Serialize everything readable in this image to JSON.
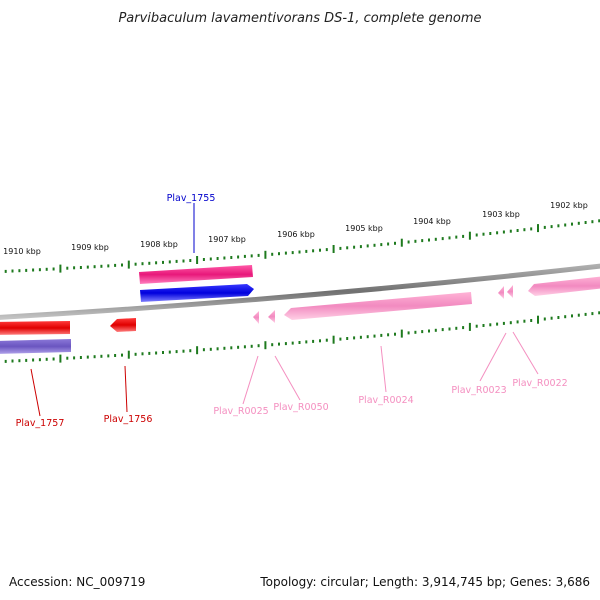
{
  "title": "Parvibaculum lavamentivorans DS-1, complete genome",
  "footer": {
    "accession": "Accession: NC_009719",
    "topology": "Topology: circular; Length: 3,914,745 bp; Genes: 3,686"
  },
  "backbone_color": "#8a8a8a",
  "tick_color": "#1e7a1e",
  "kbp_ticks": [
    {
      "label": "1910 kbp"
    },
    {
      "label": "1909 kbp"
    },
    {
      "label": "1908 kbp"
    },
    {
      "label": "1907 kbp"
    },
    {
      "label": "1906 kbp"
    },
    {
      "label": "1905 kbp"
    },
    {
      "label": "1904 kbp"
    },
    {
      "label": "1903 kbp"
    },
    {
      "label": "1902 kbp"
    }
  ],
  "features": [
    {
      "name": "Plav_1755",
      "color": "#0000ee",
      "strand": "forward"
    },
    {
      "name": "Plav_1757",
      "color": "#ee0000",
      "strand": "reverse"
    },
    {
      "name": "Plav_1756",
      "color": "#ee0000",
      "strand": "reverse"
    },
    {
      "name": "Plav_R0025",
      "color": "#f48fc0",
      "strand": "reverse"
    },
    {
      "name": "Plav_R0050",
      "color": "#f48fc0",
      "strand": "reverse"
    },
    {
      "name": "Plav_R0024",
      "color": "#f48fc0",
      "strand": "reverse"
    },
    {
      "name": "Plav_R0023",
      "color": "#f48fc0",
      "strand": "reverse"
    },
    {
      "name": "Plav_R0022",
      "color": "#f48fc0",
      "strand": "reverse"
    }
  ],
  "tracks": [
    {
      "name": "gc-skew-track",
      "color": "#ff1a8c"
    },
    {
      "name": "gc-content-track",
      "color": "#7b66c8"
    }
  ]
}
